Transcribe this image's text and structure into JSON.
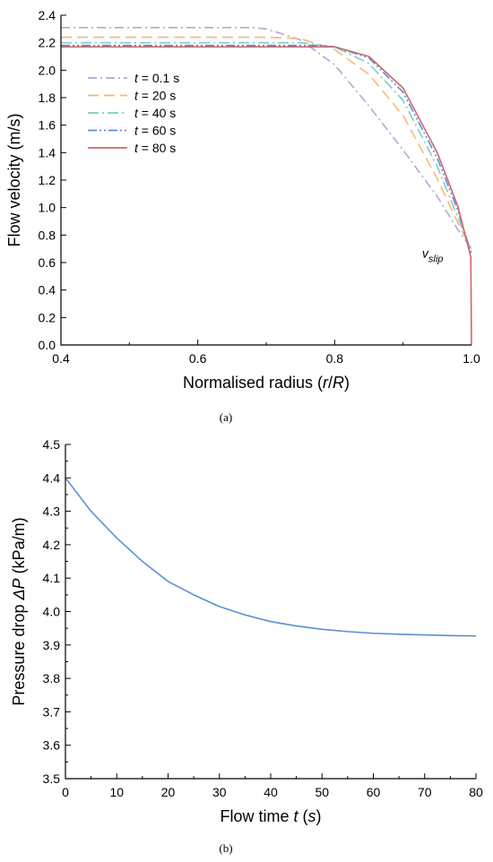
{
  "chart_data": [
    {
      "type": "line",
      "caption": "(a)",
      "xlabel_parts": [
        {
          "text": "Normalised radius (",
          "italic": false
        },
        {
          "text": "r",
          "italic": true
        },
        {
          "text": "/",
          "italic": false
        },
        {
          "text": "R",
          "italic": true
        },
        {
          "text": ")",
          "italic": false
        }
      ],
      "ylabel": "Flow velocity (m/s)",
      "xlim": [
        0.4,
        1.0
      ],
      "ylim": [
        0.0,
        2.4
      ],
      "x_ticks": [
        "0.4",
        "0.6",
        "0.8",
        "1.0"
      ],
      "y_ticks": [
        "0.0",
        "0.2",
        "0.4",
        "0.6",
        "0.8",
        "1.0",
        "1.2",
        "1.4",
        "1.6",
        "1.8",
        "2.0",
        "2.2",
        "2.4"
      ],
      "legend_position": "upper-left",
      "annotation": {
        "text": "v",
        "sub": "slip",
        "x": 0.975,
        "y": 0.67
      },
      "series": [
        {
          "name": "t = 0.1 s",
          "name_var": "t",
          "name_rest": " = 0.1 s",
          "color": "#b3a7d6",
          "dash": "10,4,2,4",
          "x": [
            0.4,
            0.68,
            0.7,
            0.72,
            0.75,
            0.8,
            0.85,
            0.9,
            0.95,
            0.98,
            1.0
          ],
          "y": [
            2.31,
            2.31,
            2.3,
            2.27,
            2.22,
            2.04,
            1.74,
            1.42,
            1.08,
            0.84,
            0.7
          ]
        },
        {
          "name": "t = 20 s",
          "name_var": "t",
          "name_rest": " = 20 s",
          "color": "#f5b97a",
          "dash": "12,6",
          "x": [
            0.4,
            0.7,
            0.75,
            0.8,
            0.85,
            0.9,
            0.95,
            0.98,
            1.0
          ],
          "y": [
            2.24,
            2.24,
            2.23,
            2.15,
            1.97,
            1.67,
            1.21,
            0.89,
            0.7
          ]
        },
        {
          "name": "t = 40 s",
          "name_var": "t",
          "name_rest": " = 40 s",
          "color": "#7fcbc4",
          "dash": "12,4,2,4",
          "x": [
            0.4,
            0.75,
            0.8,
            0.85,
            0.9,
            0.95,
            0.98,
            1.0
          ],
          "y": [
            2.2,
            2.2,
            2.17,
            2.05,
            1.78,
            1.3,
            0.93,
            0.68
          ],
          "name_color": "#000"
        },
        {
          "name": "t = 60 s",
          "name_var": "t",
          "name_rest": " = 60 s",
          "color": "#5b8fd4",
          "dash": "10,3,2,3,2,3",
          "x": [
            0.4,
            0.78,
            0.8,
            0.85,
            0.9,
            0.95,
            0.98,
            1.0
          ],
          "y": [
            2.18,
            2.18,
            2.17,
            2.09,
            1.84,
            1.36,
            0.98,
            0.66
          ]
        },
        {
          "name": "t = 80 s",
          "name_var": "t",
          "name_rest": " = 80 s",
          "color": "#d0656a",
          "dash": "",
          "x": [
            0.4,
            0.78,
            0.8,
            0.85,
            0.9,
            0.95,
            0.98,
            0.999,
            1.0
          ],
          "y": [
            2.17,
            2.17,
            2.17,
            2.1,
            1.87,
            1.4,
            1.01,
            0.64,
            0.0
          ]
        }
      ]
    },
    {
      "type": "line",
      "caption": "(b)",
      "xlabel_parts": [
        {
          "text": "Flow time ",
          "italic": false
        },
        {
          "text": "t",
          "italic": true
        },
        {
          "text": " (",
          "italic": false
        },
        {
          "text": "s",
          "italic": true
        },
        {
          "text": ")",
          "italic": false
        }
      ],
      "ylabel_parts": [
        {
          "text": "Pressure drop ",
          "italic": false
        },
        {
          "text": "ΔP",
          "italic": true
        },
        {
          "text": " (kPa/m)",
          "italic": false
        }
      ],
      "xlim": [
        0,
        80
      ],
      "ylim": [
        3.5,
        4.5
      ],
      "x_ticks": [
        "0",
        "10",
        "20",
        "30",
        "40",
        "50",
        "60",
        "70",
        "80"
      ],
      "y_ticks": [
        "3.5",
        "3.6",
        "3.7",
        "3.8",
        "3.9",
        "4.0",
        "4.1",
        "4.2",
        "4.3",
        "4.4",
        "4.5"
      ],
      "series": [
        {
          "color": "#5b8fd4",
          "x": [
            0,
            5,
            10,
            15,
            20,
            25,
            30,
            35,
            40,
            45,
            50,
            55,
            60,
            65,
            70,
            75,
            80
          ],
          "y": [
            4.4,
            4.3,
            4.22,
            4.15,
            4.09,
            4.05,
            4.015,
            3.99,
            3.97,
            3.957,
            3.947,
            3.94,
            3.935,
            3.932,
            3.93,
            3.928,
            3.927
          ]
        }
      ]
    }
  ]
}
